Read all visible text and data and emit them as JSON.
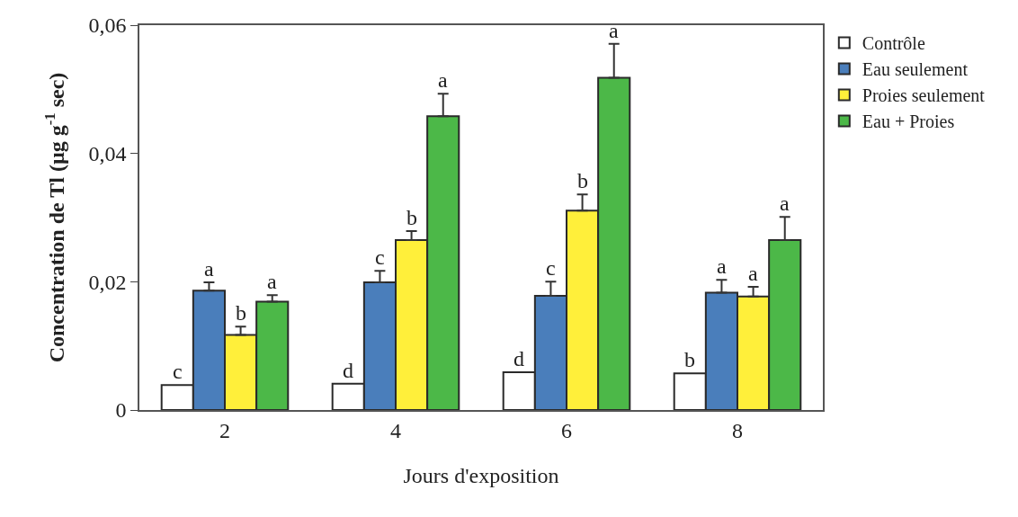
{
  "chart_data": {
    "type": "bar",
    "xlabel": "Jours d'exposition",
    "ylabel": "Concentration de Tl (µg g$^{-1}$ sec)",
    "categories": [
      "2",
      "4",
      "6",
      "8"
    ],
    "series": [
      {
        "name": "Contrôle",
        "color": "#ffffff",
        "values": [
          0.0039,
          0.0041,
          0.0059,
          0.0057
        ],
        "value_labels": [
          "c",
          "d",
          "d",
          "b"
        ]
      },
      {
        "name": "Eau seulement",
        "color": "#4a7ebb",
        "values": [
          0.0186,
          0.0199,
          0.0178,
          0.0183
        ],
        "errors": [
          [
            0.0186,
            0.0199
          ],
          [
            0.0199,
            0.0217
          ],
          [
            0.0178,
            0.02
          ],
          [
            0.0183,
            0.0203
          ]
        ],
        "value_labels": [
          "a",
          "c",
          "c",
          "a"
        ]
      },
      {
        "name": "Proies seulement",
        "color": "#ffef3a",
        "values": [
          0.0117,
          0.0265,
          0.0311,
          0.0177
        ],
        "errors": [
          [
            0.0117,
            0.013
          ],
          [
            0.0265,
            0.0279
          ],
          [
            0.0311,
            0.0336
          ],
          [
            0.0177,
            0.0192
          ]
        ],
        "value_labels": [
          "b",
          "b",
          "b",
          "a"
        ]
      },
      {
        "name": "Eau + Proies",
        "color": "#4cb848",
        "values": [
          0.0169,
          0.0458,
          0.0518,
          0.0265
        ],
        "errors": [
          [
            0.0169,
            0.0179
          ],
          [
            0.0458,
            0.0493
          ],
          [
            0.0518,
            0.0571
          ],
          [
            0.0265,
            0.0301
          ]
        ],
        "value_labels": [
          "a",
          "a",
          "a",
          "a"
        ]
      }
    ],
    "ylim": [
      0,
      0.06
    ],
    "yticks": [
      {
        "value": 0,
        "label": "0"
      },
      {
        "value": 0.02,
        "label": "0,02"
      },
      {
        "value": 0.04,
        "label": "0,04"
      },
      {
        "value": 0.06,
        "label": "0,06"
      }
    ],
    "legend": "right"
  }
}
